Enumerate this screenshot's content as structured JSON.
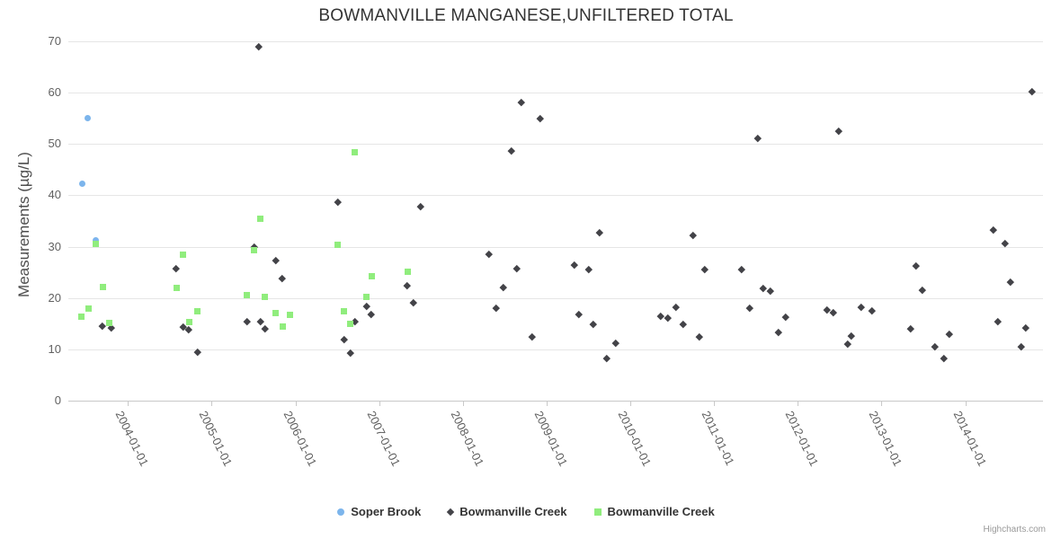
{
  "title": "BOWMANVILLE MANGANESE,UNFILTERED TOTAL",
  "credit": "Highcharts.com",
  "chart_data": {
    "type": "scatter",
    "title": "BOWMANVILLE MANGANESE,UNFILTERED TOTAL",
    "xlabel": "",
    "ylabel": "Measurements (µg/L)",
    "ylim": [
      0,
      70
    ],
    "y_ticks": [
      0,
      10,
      20,
      30,
      40,
      50,
      60,
      70
    ],
    "x_tick_labels": [
      "2004-01-01",
      "2005-01-01",
      "2006-01-01",
      "2007-01-01",
      "2008-01-01",
      "2009-01-01",
      "2010-01-01",
      "2011-01-01",
      "2012-01-01",
      "2013-01-01",
      "2014-01-01"
    ],
    "x_range": [
      "2003-04-15",
      "2014-12-05"
    ],
    "grid": "horizontal-only",
    "legend_position": "bottom-center",
    "series": [
      {
        "name": "Soper Brook",
        "marker": "circle",
        "color": "#7cb5ec",
        "points": [
          {
            "x": "2003-06-13",
            "y": 42.3
          },
          {
            "x": "2003-07-08",
            "y": 55.0
          },
          {
            "x": "2003-08-14",
            "y": 31.3
          }
        ]
      },
      {
        "name": "Bowmanville Creek",
        "marker": "diamond",
        "color": "#434348",
        "points": [
          {
            "x": "2003-09-10",
            "y": 14.6
          },
          {
            "x": "2003-10-19",
            "y": 14.3
          },
          {
            "x": "2004-07-30",
            "y": 25.7
          },
          {
            "x": "2004-08-28",
            "y": 14.4
          },
          {
            "x": "2004-09-24",
            "y": 13.9
          },
          {
            "x": "2004-10-30",
            "y": 9.5
          },
          {
            "x": "2005-06-02",
            "y": 15.5
          },
          {
            "x": "2005-07-05",
            "y": 30.0
          },
          {
            "x": "2005-07-23",
            "y": 69.0
          },
          {
            "x": "2005-08-03",
            "y": 15.5
          },
          {
            "x": "2005-08-22",
            "y": 14.1
          },
          {
            "x": "2005-10-05",
            "y": 27.4
          },
          {
            "x": "2005-11-03",
            "y": 23.8
          },
          {
            "x": "2006-07-05",
            "y": 38.8
          },
          {
            "x": "2006-07-30",
            "y": 12.0
          },
          {
            "x": "2006-08-28",
            "y": 9.4
          },
          {
            "x": "2006-09-17",
            "y": 15.4
          },
          {
            "x": "2006-11-07",
            "y": 18.4
          },
          {
            "x": "2006-11-28",
            "y": 16.9
          },
          {
            "x": "2007-05-03",
            "y": 22.5
          },
          {
            "x": "2007-05-29",
            "y": 19.2
          },
          {
            "x": "2007-06-28",
            "y": 37.8
          },
          {
            "x": "2008-04-23",
            "y": 28.5
          },
          {
            "x": "2008-05-25",
            "y": 18.0
          },
          {
            "x": "2008-06-24",
            "y": 22.1
          },
          {
            "x": "2008-07-30",
            "y": 48.7
          },
          {
            "x": "2008-08-22",
            "y": 25.7
          },
          {
            "x": "2008-09-13",
            "y": 58.1
          },
          {
            "x": "2008-10-27",
            "y": 12.4
          },
          {
            "x": "2008-12-02",
            "y": 55.0
          },
          {
            "x": "2009-04-30",
            "y": 26.4
          },
          {
            "x": "2009-05-18",
            "y": 16.9
          },
          {
            "x": "2009-07-02",
            "y": 25.6
          },
          {
            "x": "2009-07-23",
            "y": 15.0
          },
          {
            "x": "2009-08-18",
            "y": 32.7
          },
          {
            "x": "2009-09-20",
            "y": 8.2
          },
          {
            "x": "2009-10-27",
            "y": 11.2
          },
          {
            "x": "2010-05-11",
            "y": 16.5
          },
          {
            "x": "2010-06-13",
            "y": 16.1
          },
          {
            "x": "2010-07-19",
            "y": 18.3
          },
          {
            "x": "2010-08-18",
            "y": 15.0
          },
          {
            "x": "2010-10-01",
            "y": 32.3
          },
          {
            "x": "2010-10-27",
            "y": 12.5
          },
          {
            "x": "2010-11-22",
            "y": 25.6
          },
          {
            "x": "2011-04-30",
            "y": 25.6
          },
          {
            "x": "2011-06-02",
            "y": 18.0
          },
          {
            "x": "2011-07-08",
            "y": 51.2
          },
          {
            "x": "2011-08-03",
            "y": 21.9
          },
          {
            "x": "2011-09-02",
            "y": 21.4
          },
          {
            "x": "2011-10-08",
            "y": 13.3
          },
          {
            "x": "2011-11-07",
            "y": 16.3
          },
          {
            "x": "2012-05-07",
            "y": 17.7
          },
          {
            "x": "2012-06-02",
            "y": 17.2
          },
          {
            "x": "2012-06-28",
            "y": 52.6
          },
          {
            "x": "2012-08-07",
            "y": 11.0
          },
          {
            "x": "2012-08-22",
            "y": 12.6
          },
          {
            "x": "2012-10-05",
            "y": 18.3
          },
          {
            "x": "2012-11-18",
            "y": 17.6
          },
          {
            "x": "2013-05-07",
            "y": 14.1
          },
          {
            "x": "2013-05-29",
            "y": 26.3
          },
          {
            "x": "2013-06-28",
            "y": 21.5
          },
          {
            "x": "2013-08-22",
            "y": 10.5
          },
          {
            "x": "2013-09-28",
            "y": 8.3
          },
          {
            "x": "2013-10-23",
            "y": 13.0
          },
          {
            "x": "2014-05-03",
            "y": 33.3
          },
          {
            "x": "2014-05-22",
            "y": 15.5
          },
          {
            "x": "2014-06-20",
            "y": 30.6
          },
          {
            "x": "2014-07-16",
            "y": 23.1
          },
          {
            "x": "2014-09-02",
            "y": 10.6
          },
          {
            "x": "2014-09-20",
            "y": 14.3
          },
          {
            "x": "2014-10-16",
            "y": 60.3
          }
        ]
      },
      {
        "name": "Bowmanville Creek",
        "marker": "square",
        "color": "#90ed7d",
        "points": [
          {
            "x": "2003-06-10",
            "y": 16.3
          },
          {
            "x": "2003-07-12",
            "y": 17.9
          },
          {
            "x": "2003-08-11",
            "y": 30.5
          },
          {
            "x": "2003-09-13",
            "y": 22.1
          },
          {
            "x": "2003-10-12",
            "y": 15.2
          },
          {
            "x": "2004-07-30",
            "y": 22.0
          },
          {
            "x": "2004-08-28",
            "y": 28.4
          },
          {
            "x": "2004-09-24",
            "y": 15.4
          },
          {
            "x": "2004-10-30",
            "y": 17.4
          },
          {
            "x": "2005-06-02",
            "y": 20.6
          },
          {
            "x": "2005-07-02",
            "y": 29.4
          },
          {
            "x": "2005-07-30",
            "y": 35.5
          },
          {
            "x": "2005-08-18",
            "y": 20.3
          },
          {
            "x": "2005-10-05",
            "y": 17.1
          },
          {
            "x": "2005-11-07",
            "y": 14.5
          },
          {
            "x": "2005-12-06",
            "y": 16.8
          },
          {
            "x": "2006-07-02",
            "y": 30.3
          },
          {
            "x": "2006-07-30",
            "y": 17.4
          },
          {
            "x": "2006-08-28",
            "y": 14.9
          },
          {
            "x": "2006-09-17",
            "y": 48.4
          },
          {
            "x": "2006-11-07",
            "y": 20.2
          },
          {
            "x": "2006-11-28",
            "y": 24.2
          },
          {
            "x": "2007-05-03",
            "y": 25.1
          }
        ]
      }
    ]
  }
}
